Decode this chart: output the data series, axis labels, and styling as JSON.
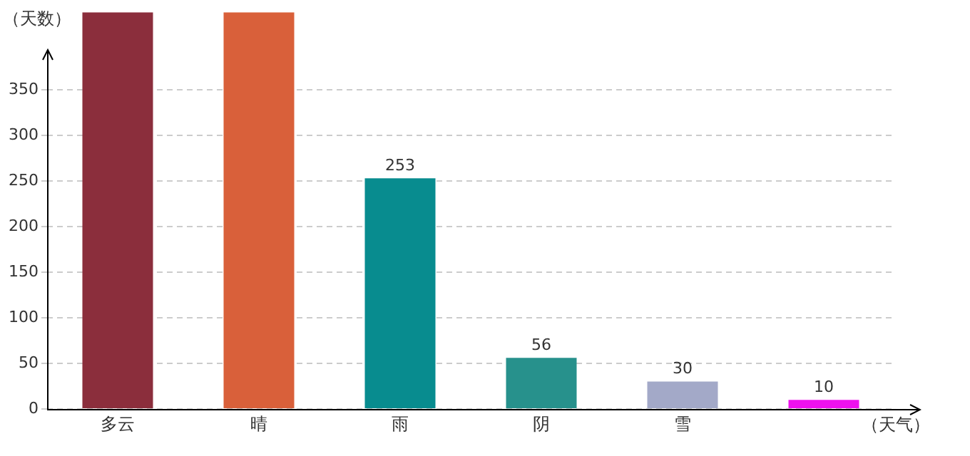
{
  "chart_data": {
    "type": "bar",
    "ylabel": "（天数）",
    "xlabel": "（天气）",
    "categories": [
      "多云",
      "晴",
      "雨",
      "阴",
      "雪",
      null
    ],
    "values": [
      435,
      435,
      253,
      56,
      30,
      10
    ],
    "value_labels": [
      null,
      null,
      "253",
      "56",
      "30",
      "10"
    ],
    "colors": [
      "#8b2e3c",
      "#d9603a",
      "#088c8f",
      "#27918c",
      "#a3a9c8",
      "#ee11ee"
    ],
    "ylim": [
      0,
      435
    ],
    "yticks": [
      0,
      50,
      100,
      150,
      200,
      250,
      300,
      350
    ],
    "grid": "y",
    "legend": false
  }
}
